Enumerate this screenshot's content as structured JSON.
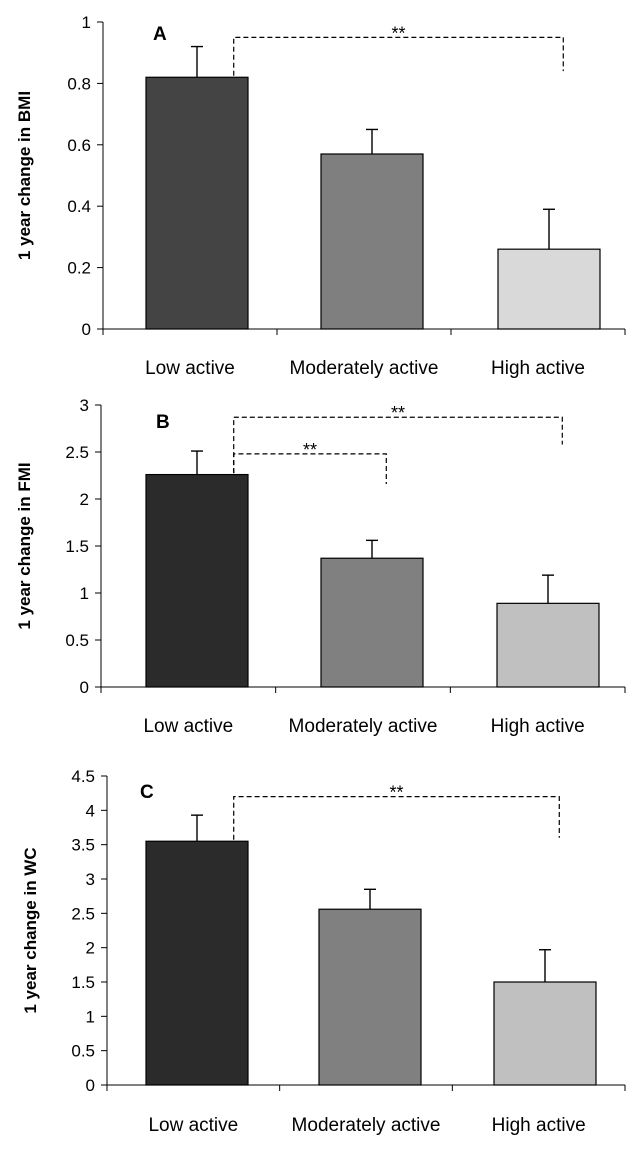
{
  "chart_data": [
    {
      "type": "bar",
      "panel": "A",
      "ylabel": "1 year change in BMI",
      "categories": [
        "Low active",
        "Moderately active",
        "High active"
      ],
      "values": [
        0.82,
        0.57,
        0.26
      ],
      "errors": [
        0.1,
        0.08,
        0.13
      ],
      "colors": [
        "#444444",
        "#7f7f7f",
        "#d9d9d9"
      ],
      "ylim": [
        0,
        1
      ],
      "yticks": [
        0,
        0.2,
        0.4,
        0.6,
        0.8,
        1
      ],
      "ytick_labels": [
        "0",
        "0.2",
        "0.4",
        "0.6",
        "0.8",
        "1"
      ],
      "significance": [
        {
          "from": 0,
          "to": 2,
          "label": "**",
          "y": 0.95,
          "drop_to": 0.84
        }
      ],
      "grid": false,
      "legend": "none"
    },
    {
      "type": "bar",
      "panel": "B",
      "ylabel": "1 year change in FMI",
      "categories": [
        "Low active",
        "Moderately active",
        "High active"
      ],
      "values": [
        2.26,
        1.37,
        0.89
      ],
      "errors": [
        0.25,
        0.19,
        0.3
      ],
      "colors": [
        "#2b2b2b",
        "#808080",
        "#c0c0c0"
      ],
      "ylim": [
        0,
        3
      ],
      "yticks": [
        0,
        0.5,
        1,
        1.5,
        2,
        2.5,
        3
      ],
      "ytick_labels": [
        "0",
        "0.5",
        "1",
        "1.5",
        "2",
        "2.5",
        "3"
      ],
      "significance": [
        {
          "from": 0,
          "to": 2,
          "label": "**",
          "y": 2.87,
          "drop_to": 2.58
        },
        {
          "from": 0,
          "to": 1,
          "label": "**",
          "y": 2.48,
          "drop_to": 2.16
        }
      ],
      "grid": false,
      "legend": "none"
    },
    {
      "type": "bar",
      "panel": "C",
      "ylabel": "1 year change in WC",
      "categories": [
        "Low active",
        "Moderately active",
        "High active"
      ],
      "values": [
        3.55,
        2.56,
        1.5
      ],
      "errors": [
        0.38,
        0.29,
        0.47
      ],
      "colors": [
        "#2b2b2b",
        "#808080",
        "#c0c0c0"
      ],
      "ylim": [
        0,
        4.5
      ],
      "yticks": [
        0,
        0.5,
        1,
        1.5,
        2,
        2.5,
        3,
        3.5,
        4,
        4.5
      ],
      "ytick_labels": [
        "0",
        "0.5",
        "1",
        "1.5",
        "2",
        "2.5",
        "3",
        "3.5",
        "4",
        "4.5"
      ],
      "significance": [
        {
          "from": 0,
          "to": 2,
          "label": "**",
          "y": 4.2,
          "drop_to": 3.6
        }
      ],
      "grid": false,
      "legend": "none"
    }
  ]
}
